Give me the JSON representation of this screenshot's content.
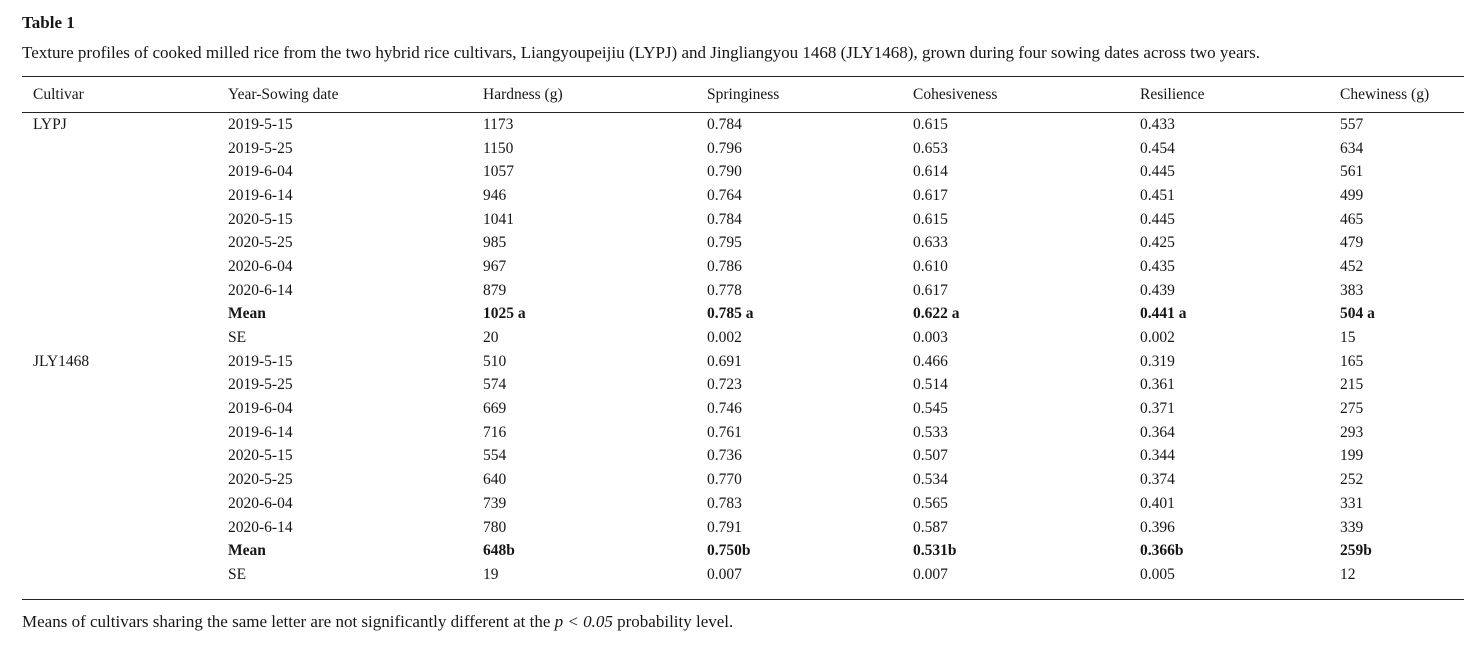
{
  "table": {
    "title": "Table 1",
    "caption": "Texture profiles of cooked milled rice from the two hybrid rice cultivars, Liangyoupeijiu (LYPJ) and Jingliangyou 1468 (JLY1468), grown during four sowing dates across two years.",
    "columns": [
      "Cultivar",
      "Year-Sowing date",
      "Hardness (g)",
      "Springiness",
      "Cohesiveness",
      "Resilience",
      "Chewiness (g)"
    ],
    "groups": [
      {
        "cultivar": "LYPJ",
        "rows": [
          {
            "bold": false,
            "cells": [
              "2019-5-15",
              "1173",
              "0.784",
              "0.615",
              "0.433",
              "557"
            ]
          },
          {
            "bold": false,
            "cells": [
              "2019-5-25",
              "1150",
              "0.796",
              "0.653",
              "0.454",
              "634"
            ]
          },
          {
            "bold": false,
            "cells": [
              "2019-6-04",
              "1057",
              "0.790",
              "0.614",
              "0.445",
              "561"
            ]
          },
          {
            "bold": false,
            "cells": [
              "2019-6-14",
              "946",
              "0.764",
              "0.617",
              "0.451",
              "499"
            ]
          },
          {
            "bold": false,
            "cells": [
              "2020-5-15",
              "1041",
              "0.784",
              "0.615",
              "0.445",
              "465"
            ]
          },
          {
            "bold": false,
            "cells": [
              "2020-5-25",
              "985",
              "0.795",
              "0.633",
              "0.425",
              "479"
            ]
          },
          {
            "bold": false,
            "cells": [
              "2020-6-04",
              "967",
              "0.786",
              "0.610",
              "0.435",
              "452"
            ]
          },
          {
            "bold": false,
            "cells": [
              "2020-6-14",
              "879",
              "0.778",
              "0.617",
              "0.439",
              "383"
            ]
          },
          {
            "bold": true,
            "cells": [
              "Mean",
              "1025 a",
              "0.785 a",
              "0.622 a",
              "0.441 a",
              "504 a"
            ]
          },
          {
            "bold": false,
            "cells": [
              "SE",
              "20",
              "0.002",
              "0.003",
              "0.002",
              "15"
            ]
          }
        ]
      },
      {
        "cultivar": "JLY1468",
        "rows": [
          {
            "bold": false,
            "cells": [
              "2019-5-15",
              "510",
              "0.691",
              "0.466",
              "0.319",
              "165"
            ]
          },
          {
            "bold": false,
            "cells": [
              "2019-5-25",
              "574",
              "0.723",
              "0.514",
              "0.361",
              "215"
            ]
          },
          {
            "bold": false,
            "cells": [
              "2019-6-04",
              "669",
              "0.746",
              "0.545",
              "0.371",
              "275"
            ]
          },
          {
            "bold": false,
            "cells": [
              "2019-6-14",
              "716",
              "0.761",
              "0.533",
              "0.364",
              "293"
            ]
          },
          {
            "bold": false,
            "cells": [
              "2020-5-15",
              "554",
              "0.736",
              "0.507",
              "0.344",
              "199"
            ]
          },
          {
            "bold": false,
            "cells": [
              "2020-5-25",
              "640",
              "0.770",
              "0.534",
              "0.374",
              "252"
            ]
          },
          {
            "bold": false,
            "cells": [
              "2020-6-04",
              "739",
              "0.783",
              "0.565",
              "0.401",
              "331"
            ]
          },
          {
            "bold": false,
            "cells": [
              "2020-6-14",
              "780",
              "0.791",
              "0.587",
              "0.396",
              "339"
            ]
          },
          {
            "bold": true,
            "cells": [
              "Mean",
              "648b",
              "0.750b",
              "0.531b",
              "0.366b",
              "259b"
            ]
          },
          {
            "bold": false,
            "cells": [
              "SE",
              "19",
              "0.007",
              "0.007",
              "0.005",
              "12"
            ]
          }
        ]
      }
    ],
    "footnote": {
      "pre": "Means of cultivars sharing the same letter are not significantly different at the ",
      "italic": "p < 0.05",
      "post": " probability level."
    }
  }
}
